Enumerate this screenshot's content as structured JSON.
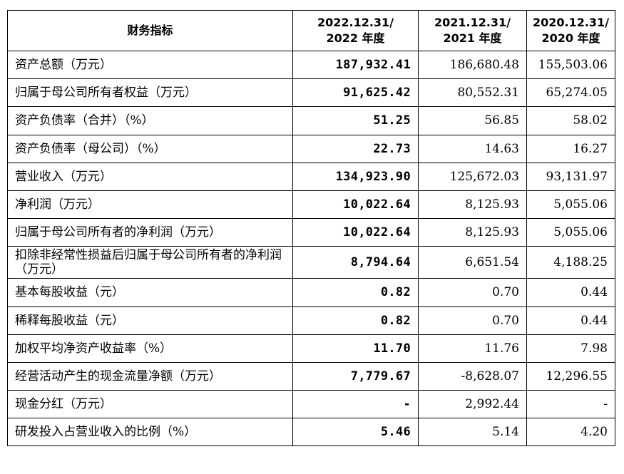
{
  "table": {
    "headers": [
      {
        "line1": "财务指标",
        "line2": ""
      },
      {
        "line1": "2022.12.31/",
        "line2": "2022 年度"
      },
      {
        "line1": "2021.12.31/",
        "line2": "2021 年度"
      },
      {
        "line1": "2020.12.31/",
        "line2": "2020 年度"
      }
    ],
    "rows": [
      {
        "label": "资产总额（万元）",
        "v2022": "187,932.41",
        "v2021": "186,680.48",
        "v2020": "155,503.06"
      },
      {
        "label": "归属于母公司所有者权益（万元）",
        "v2022": "91,625.42",
        "v2021": "80,552.31",
        "v2020": "65,274.05"
      },
      {
        "label": "资产负债率（合并）（%）",
        "v2022": "51.25",
        "v2021": "56.85",
        "v2020": "58.02"
      },
      {
        "label": "资产负债率（母公司）（%）",
        "v2022": "22.73",
        "v2021": "14.63",
        "v2020": "16.27"
      },
      {
        "label": "营业收入（万元）",
        "v2022": "134,923.90",
        "v2021": "125,672.03",
        "v2020": "93,131.97"
      },
      {
        "label": "净利润（万元）",
        "v2022": "10,022.64",
        "v2021": "8,125.93",
        "v2020": "5,055.06"
      },
      {
        "label": "归属于母公司所有者的净利润（万元）",
        "v2022": "10,022.64",
        "v2021": "8,125.93",
        "v2020": "5,055.06"
      },
      {
        "label": "扣除非经常性损益后归属于母公司所有者的净利润（万元）",
        "v2022": "8,794.64",
        "v2021": "6,651.54",
        "v2020": "4,188.25"
      },
      {
        "label": "基本每股收益（元）",
        "v2022": "0.82",
        "v2021": "0.70",
        "v2020": "0.44"
      },
      {
        "label": "稀释每股收益（元）",
        "v2022": "0.82",
        "v2021": "0.70",
        "v2020": "0.44"
      },
      {
        "label": "加权平均净资产收益率（%）",
        "v2022": "11.70",
        "v2021": "11.76",
        "v2020": "7.98"
      },
      {
        "label": "经营活动产生的现金流量净额（万元）",
        "v2022": "7,779.67",
        "v2021": "-8,628.07",
        "v2020": "12,296.55"
      },
      {
        "label": "现金分红（万元）",
        "v2022": "-",
        "v2021": "2,992.44",
        "v2020": "-"
      },
      {
        "label": "研发投入占营业收入的比例（%）",
        "v2022": "5.46",
        "v2021": "5.14",
        "v2020": "4.20"
      }
    ]
  }
}
